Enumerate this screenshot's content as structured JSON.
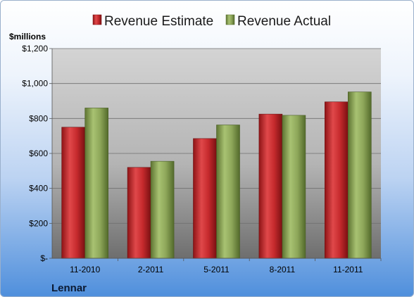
{
  "colors": {
    "estimate": "#c0282b",
    "actual": "#8ea75a"
  },
  "chart_data": {
    "type": "bar",
    "ylabel": "$millions",
    "footer": "Lennar",
    "categories": [
      "11-2010",
      "2-2011",
      "5-2011",
      "8-2011",
      "11-2011"
    ],
    "series": [
      {
        "name": "Revenue Estimate",
        "values": [
          750,
          520,
          685,
          825,
          895
        ]
      },
      {
        "name": "Revenue Actual",
        "values": [
          860,
          555,
          763,
          818,
          952
        ]
      }
    ],
    "ylim": [
      0,
      1200
    ],
    "yticks": [
      0,
      200,
      400,
      600,
      800,
      1000,
      1200
    ],
    "ytick_labels": [
      "$-",
      "$200",
      "$400",
      "$600",
      "$800",
      "$1,000",
      "$1,200"
    ],
    "grid": true,
    "legend": "top"
  }
}
